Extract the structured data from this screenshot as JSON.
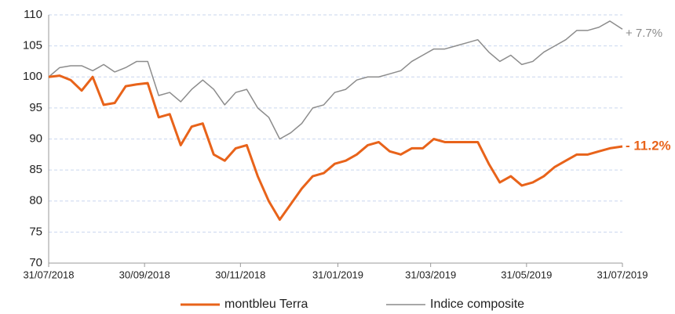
{
  "chart_data": {
    "type": "line",
    "x": [
      "31/07/2018",
      "07/08/2018",
      "14/08/2018",
      "21/08/2018",
      "28/08/2018",
      "04/09/2018",
      "11/09/2018",
      "18/09/2018",
      "25/09/2018",
      "02/10/2018",
      "09/10/2018",
      "16/10/2018",
      "23/10/2018",
      "30/10/2018",
      "06/11/2018",
      "13/11/2018",
      "20/11/2018",
      "27/11/2018",
      "04/12/2018",
      "11/12/2018",
      "18/12/2018",
      "25/12/2018",
      "01/01/2019",
      "08/01/2019",
      "15/01/2019",
      "22/01/2019",
      "29/01/2019",
      "05/02/2019",
      "12/02/2019",
      "19/02/2019",
      "26/02/2019",
      "05/03/2019",
      "12/03/2019",
      "19/03/2019",
      "26/03/2019",
      "02/04/2019",
      "09/04/2019",
      "16/04/2019",
      "23/04/2019",
      "30/04/2019",
      "07/05/2019",
      "14/05/2019",
      "21/05/2019",
      "28/05/2019",
      "04/06/2019",
      "11/06/2019",
      "18/06/2019",
      "25/06/2019",
      "02/07/2019",
      "09/07/2019",
      "16/07/2019",
      "23/07/2019",
      "31/07/2019"
    ],
    "series": [
      {
        "name": "montbleu Terra",
        "color": "#e8631a",
        "values": [
          100,
          100.2,
          99.5,
          97.8,
          100,
          95.5,
          95.8,
          98.5,
          98.8,
          99,
          93.5,
          94,
          89,
          92,
          92.5,
          87.5,
          86.5,
          88.5,
          89,
          84,
          80,
          77,
          79.5,
          82,
          84,
          84.5,
          86,
          86.5,
          87.5,
          89,
          89.5,
          88,
          87.5,
          88.5,
          88.5,
          90,
          89.5,
          89.5,
          89.5,
          89.5,
          86,
          83,
          84,
          82.5,
          83,
          84,
          85.5,
          86.5,
          87.5,
          87.5,
          88,
          88.5,
          88.8
        ]
      },
      {
        "name": "Indice composite",
        "color": "#8c8c8c",
        "values": [
          100,
          101.5,
          101.8,
          101.8,
          101,
          102,
          100.8,
          101.5,
          102.5,
          102.5,
          97,
          97.5,
          96,
          98,
          99.5,
          98,
          95.5,
          97.5,
          98,
          95,
          93.5,
          90,
          91,
          92.5,
          95,
          95.5,
          97.5,
          98,
          99.5,
          100,
          100,
          100.5,
          101,
          102.5,
          103.5,
          104.5,
          104.5,
          105,
          105.5,
          106,
          104,
          102.5,
          103.5,
          102,
          102.5,
          104,
          105,
          106,
          107.5,
          107.5,
          108,
          109,
          107.7
        ]
      }
    ],
    "annotations": [
      "+ 7.7%",
      "- 11.2%"
    ],
    "xlim": [
      "31/07/2018",
      "31/07/2019"
    ],
    "xticks": [
      "31/07/2018",
      "30/09/2018",
      "30/11/2018",
      "31/01/2019",
      "31/03/2019",
      "31/05/2019",
      "31/07/2019"
    ],
    "ylim": [
      70,
      110
    ],
    "yticks": [
      70,
      75,
      80,
      85,
      90,
      95,
      100,
      105,
      110
    ],
    "grid": true,
    "legend": "bottom"
  }
}
